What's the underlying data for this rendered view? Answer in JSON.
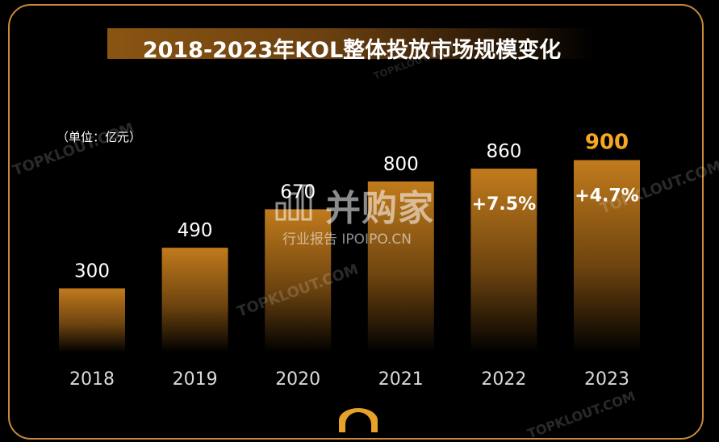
{
  "chart_data": {
    "type": "bar",
    "title": "2018-2023年KOL整体投放市场规模变化",
    "unit_label": "（单位：亿元）",
    "categories": [
      "2018",
      "2019",
      "2020",
      "2021",
      "2022",
      "2023"
    ],
    "values": [
      300,
      490,
      670,
      800,
      860,
      900
    ],
    "value_labels": [
      "300",
      "490",
      "670",
      "800",
      "860",
      "900"
    ],
    "annotations": [
      {
        "category": "2022",
        "text": "+7.5%"
      },
      {
        "category": "2023",
        "text": "+4.7%"
      }
    ],
    "highlight_category": "2023",
    "ylim": [
      0,
      1000
    ],
    "grid": false,
    "colors": {
      "bar_top": "#c17b1c",
      "bar_bottom": "#000000",
      "highlight_label": "#f5a623",
      "label": "#ffffff",
      "axis_label": "#d9d9d9",
      "frame": "#c8893a"
    }
  },
  "watermarks": {
    "brand": "TOPKLOUT.COM",
    "logo_name": "并购家",
    "logo_sub": "行业报告 IPOIPO.CN"
  }
}
